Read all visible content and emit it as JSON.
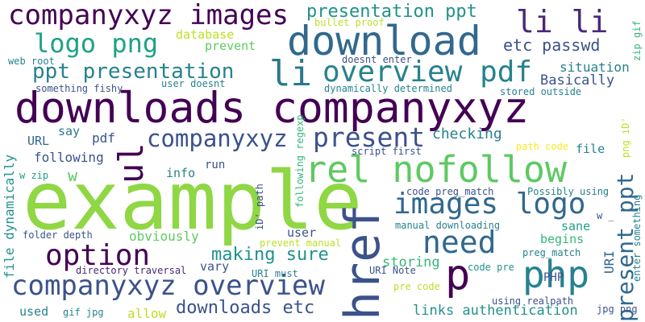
{
  "words": [
    {
      "text": "downloads companyxyz",
      "color": "#440154"
    },
    {
      "text": "example",
      "color": "#8fd744"
    },
    {
      "text": "download",
      "color": "#31688e"
    },
    {
      "text": "companyxyz images",
      "color": "#440154"
    },
    {
      "text": "rel nofollow",
      "color": "#5ec962"
    },
    {
      "text": "overview pdf",
      "color": "#26828e"
    },
    {
      "text": "companyxyz overview",
      "color": "#3b528b"
    },
    {
      "text": "href",
      "color": "#3b528b"
    },
    {
      "text": "need",
      "color": "#31688e"
    },
    {
      "text": "images logo",
      "color": "#31688e"
    },
    {
      "text": "logo png",
      "color": "#1fa187"
    },
    {
      "text": "ppt presentation",
      "color": "#26828e"
    },
    {
      "text": "option",
      "color": "#440154"
    },
    {
      "text": "present ppt",
      "color": "#31688e"
    },
    {
      "text": "li li",
      "color": "#482878"
    },
    {
      "text": "php",
      "color": "#26828e"
    },
    {
      "text": "companyxyz",
      "color": "#3b528b"
    },
    {
      "text": "present",
      "color": "#3b528b"
    },
    {
      "text": "presentation ppt",
      "color": "#21918c"
    },
    {
      "text": "li",
      "color": "#2a788e"
    },
    {
      "text": "p",
      "color": "#440154"
    },
    {
      "text": "ul",
      "color": "#440154"
    },
    {
      "text": "making sure",
      "color": "#21918c"
    },
    {
      "text": "downloads etc",
      "color": "#3b528b"
    },
    {
      "text": "etc passwd",
      "color": "#3b528b"
    },
    {
      "text": "links authentication",
      "color": "#21918c"
    },
    {
      "text": "checking",
      "color": "#26828e"
    },
    {
      "text": "situation",
      "color": "#26828e"
    },
    {
      "text": "Basically",
      "color": "#3b528b"
    },
    {
      "text": "database",
      "color": "#bddf26"
    },
    {
      "text": "prevent",
      "color": "#5ec962"
    },
    {
      "text": "obviously",
      "color": "#5ec962"
    },
    {
      "text": "storing",
      "color": "#35b779"
    },
    {
      "text": "begins",
      "color": "#35b779"
    },
    {
      "text": "sane",
      "color": "#1fa187"
    },
    {
      "text": "file",
      "color": "#26828e"
    },
    {
      "text": "following",
      "color": "#3b528b"
    },
    {
      "text": "pdf",
      "color": "#3b528b"
    },
    {
      "text": "URL",
      "color": "#31688e"
    },
    {
      "text": "say",
      "color": "#2a788e"
    },
    {
      "text": "w",
      "color": "#5ec962"
    },
    {
      "text": "info",
      "color": "#26828e"
    },
    {
      "text": "run",
      "color": "#3b528b"
    },
    {
      "text": "user",
      "color": "#3b528b"
    },
    {
      "text": "vary",
      "color": "#3b528b"
    },
    {
      "text": "used",
      "color": "#26828e"
    },
    {
      "text": "allow",
      "color": "#bddf26"
    },
    {
      "text": "PHP",
      "color": "#3b528b"
    },
    {
      "text": "URI",
      "color": "#31688e"
    },
    {
      "text": "file dynamically",
      "color": "#21918c"
    },
    {
      "text": "web root",
      "color": "#26828e"
    },
    {
      "text": "something fishy",
      "color": "#3b528b"
    },
    {
      "text": "user doesnt",
      "color": "#26828e"
    },
    {
      "text": "doesnt enter",
      "color": "#3b528b"
    },
    {
      "text": "dynamically determined",
      "color": "#26828e"
    },
    {
      "text": "stored outside",
      "color": "#26828e"
    },
    {
      "text": "bullet proof",
      "color": "#bddf26"
    },
    {
      "text": "zip gif",
      "color": "#35b779"
    },
    {
      "text": "script first",
      "color": "#3b528b"
    },
    {
      "text": "path code",
      "color": "#fde725"
    },
    {
      "text": "png iD'",
      "color": "#bddf26"
    },
    {
      "text": "w zip",
      "color": "#1fa187"
    },
    {
      "text": "iD' path",
      "color": "#3b528b"
    },
    {
      "text": "following regexp",
      "color": "#35b779"
    },
    {
      "text": "code preg_match",
      "color": "#3b528b"
    },
    {
      "text": "Possibly using",
      "color": "#26828e"
    },
    {
      "text": "folder depth",
      "color": "#3b528b"
    },
    {
      "text": "manual downloading",
      "color": "#26828e"
    },
    {
      "text": "prevent manual",
      "color": "#bddf26"
    },
    {
      "text": "preg_match",
      "color": "#26828e"
    },
    {
      "text": "directory traversal",
      "color": "#482878"
    },
    {
      "text": "URI must",
      "color": "#26828e"
    },
    {
      "text": "URI Note",
      "color": "#3b528b"
    },
    {
      "text": "code pre",
      "color": "#21918c"
    },
    {
      "text": "pre code",
      "color": "#bddf26"
    },
    {
      "text": "gif jpg",
      "color": "#26828e"
    },
    {
      "text": "using realpath",
      "color": "#3b528b"
    },
    {
      "text": "jpg png",
      "color": "#3b528b"
    },
    {
      "text": "enter something",
      "color": "#26828e"
    },
    {
      "text": "w _",
      "color": "#3b528b"
    }
  ]
}
